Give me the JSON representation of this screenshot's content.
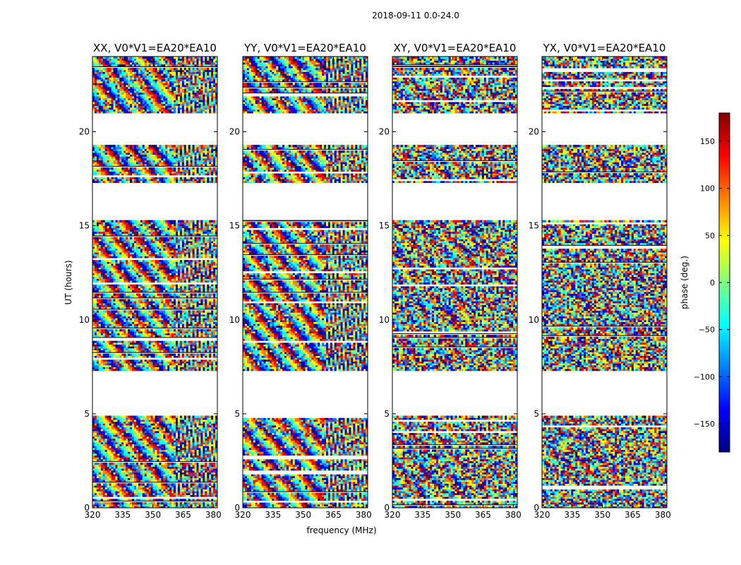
{
  "figure": {
    "suptitle": "2018-09-11 0.0-24.0"
  },
  "colors": {
    "jet": [
      "#000080",
      "#0000ff",
      "#0080ff",
      "#00ffff",
      "#80ff80",
      "#ffff00",
      "#ff8000",
      "#ff0000",
      "#800000"
    ]
  },
  "chart_data": {
    "type": "heatmap",
    "title": "2018-09-11 0.0-24.0",
    "xlabel": "frequency (MHz)",
    "ylabel": "UT (hours)",
    "xlim": [
      320,
      382
    ],
    "ylim": [
      0,
      24
    ],
    "x_ticks": [
      320,
      335,
      350,
      365,
      380
    ],
    "y_ticks": [
      0,
      5,
      10,
      15,
      20
    ],
    "colorbar": {
      "label": "phase (deg.)",
      "range": [
        -180,
        180
      ],
      "ticks": [
        -150,
        -100,
        -50,
        0,
        50,
        100,
        150
      ],
      "tick_labels": [
        "−150",
        "−100",
        "−50",
        "0",
        "50",
        "100",
        "150"
      ],
      "cmap": "jet"
    },
    "data_gaps_hours": [
      [
        19.3,
        21.0
      ],
      [
        15.2,
        17.2
      ],
      [
        4.8,
        7.2
      ]
    ],
    "panels": [
      {
        "title": "XX, V0*V1=EA20*EA10",
        "fringe_strength": 0.85
      },
      {
        "title": "YY, V0*V1=EA20*EA10",
        "fringe_strength": 0.85
      },
      {
        "title": "XY, V0*V1=EA20*EA10",
        "fringe_strength": 0.35
      },
      {
        "title": "YX, V0*V1=EA20*EA10",
        "fringe_strength": 0.15
      }
    ]
  }
}
